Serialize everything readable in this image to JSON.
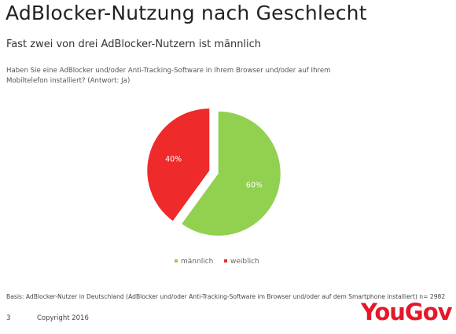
{
  "title": "AdBlocker-Nutzung nach Geschlecht",
  "subtitle": "Fast zwei von drei AdBlocker-Nutzern ist männlich",
  "question": "Haben Sie eine AdBlocker und/oder Anti-Tracking-Software in Ihrem Browser und/oder auf Ihrem Mobiltelefon installiert? (Antwort: Ja)",
  "basis": "Basis: AdBlocker-Nutzer in Deutschland (AdBlocker und/oder Anti-Tracking-Software im Browser und/oder auf dem Smartphone installiert) n= 2982",
  "footer": {
    "page_number": "3",
    "copyright": "Copyright 2016",
    "logo": "YouGov"
  },
  "chart_data": {
    "type": "pie",
    "slices": [
      {
        "label": "männlich",
        "value": 60,
        "display": "60%",
        "color": "#92d050"
      },
      {
        "label": "weiblich",
        "value": 40,
        "display": "40%",
        "color": "#ee2a2a"
      }
    ],
    "legend_position": "bottom"
  }
}
